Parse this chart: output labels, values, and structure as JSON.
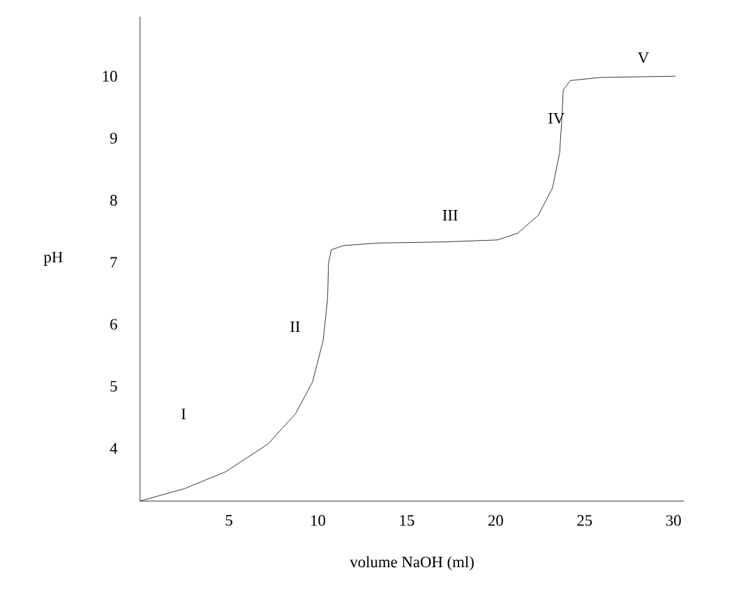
{
  "chart_data": {
    "type": "line",
    "xlabel": "volume NaOH (ml)",
    "ylabel": "pH",
    "xlim": [
      0,
      30.6
    ],
    "ylim": [
      3.15,
      10.96
    ],
    "xticks": [
      5,
      10,
      15,
      20,
      25,
      30
    ],
    "yticks": [
      4,
      5,
      6,
      7,
      8,
      9,
      10
    ],
    "color": "#000000",
    "marker": "none",
    "x": [
      0,
      2.5,
      4.8,
      7.2,
      8.75,
      9.7,
      10.3,
      10.55,
      10.6,
      10.75,
      11.45,
      13.4,
      17.3,
      20.1,
      21.25,
      22.4,
      23.2,
      23.6,
      23.75,
      23.8,
      24.2,
      25.9,
      30.1
    ],
    "values": [
      3.15,
      3.35,
      3.62,
      4.07,
      4.56,
      5.07,
      5.74,
      6.42,
      6.98,
      7.2,
      7.27,
      7.31,
      7.33,
      7.36,
      7.47,
      7.76,
      8.2,
      8.77,
      9.44,
      9.78,
      9.93,
      9.98,
      10
    ],
    "annotations": [
      "I",
      "II",
      "III",
      "IV",
      "V"
    ]
  }
}
